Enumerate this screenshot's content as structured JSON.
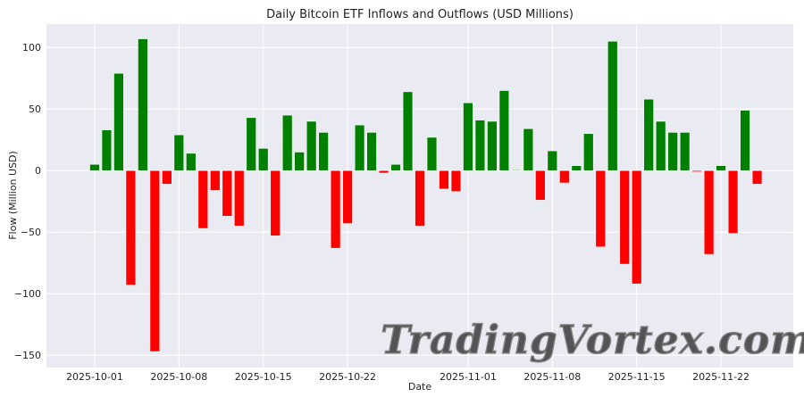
{
  "chart_data": {
    "type": "bar",
    "title": "Daily Bitcoin ETF Inflows and Outflows (USD Millions)",
    "xlabel": "Date",
    "ylabel": "Flow (Million USD)",
    "start_date": "2025-10-01",
    "x": [
      "2025-10-01",
      "2025-10-02",
      "2025-10-03",
      "2025-10-04",
      "2025-10-05",
      "2025-10-06",
      "2025-10-07",
      "2025-10-08",
      "2025-10-09",
      "2025-10-10",
      "2025-10-11",
      "2025-10-12",
      "2025-10-13",
      "2025-10-14",
      "2025-10-15",
      "2025-10-16",
      "2025-10-17",
      "2025-10-18",
      "2025-10-19",
      "2025-10-20",
      "2025-10-21",
      "2025-10-22",
      "2025-10-23",
      "2025-10-24",
      "2025-10-25",
      "2025-10-26",
      "2025-10-27",
      "2025-10-28",
      "2025-10-29",
      "2025-10-30",
      "2025-10-31",
      "2025-11-01",
      "2025-11-02",
      "2025-11-03",
      "2025-11-04",
      "2025-11-05",
      "2025-11-06",
      "2025-11-07",
      "2025-11-08",
      "2025-11-09",
      "2025-11-10",
      "2025-11-11",
      "2025-11-12",
      "2025-11-13",
      "2025-11-14",
      "2025-11-15",
      "2025-11-16",
      "2025-11-17",
      "2025-11-18",
      "2025-11-19",
      "2025-11-20",
      "2025-11-21",
      "2025-11-22",
      "2025-11-23",
      "2025-11-24",
      "2025-11-25"
    ],
    "values": [
      5,
      33,
      79,
      -93,
      107,
      -147,
      -11,
      29,
      14,
      -47,
      -16,
      -37,
      -45,
      43,
      18,
      -53,
      45,
      15,
      40,
      31,
      -63,
      -43,
      37,
      31,
      -2,
      5,
      64,
      -45,
      27,
      -15,
      -17,
      55,
      41,
      40,
      65,
      0.5,
      34,
      -24,
      16,
      -10,
      4,
      30,
      -62,
      105,
      -76,
      -92,
      58,
      40,
      31,
      31,
      -1,
      -68,
      4,
      -51,
      49,
      -11
    ],
    "colors": {
      "positive": "#008000",
      "negative": "#ff0000"
    },
    "ylim": [
      -160,
      119
    ],
    "xlim": [
      "2025-09-27",
      "2025-11-28"
    ],
    "yticks": [
      100,
      50,
      0,
      -50,
      -100,
      -150
    ],
    "ytick_labels": [
      "100",
      "50",
      "0",
      "−50",
      "−100",
      "−150"
    ],
    "xticks": [
      "2025-10-01",
      "2025-10-08",
      "2025-10-15",
      "2025-10-22",
      "2025-11-01",
      "2025-11-08",
      "2025-11-15",
      "2025-11-22"
    ],
    "grid": true,
    "background": "#eaeaf2"
  },
  "watermark": "TradingVortex.com"
}
